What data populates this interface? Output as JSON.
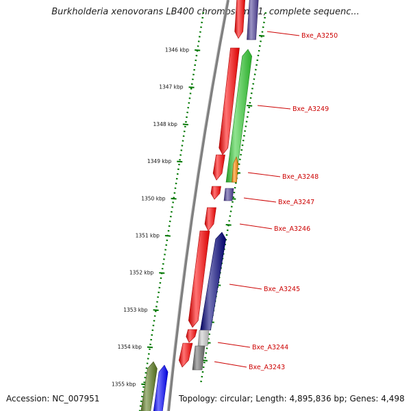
{
  "title": "Burkholderia xenovorans LB400 chromosome 1, complete sequenc...",
  "footer": {
    "accession": "Accession: NC_007951",
    "summary": "Topology: circular; Length: 4,895,836 bp; Genes: 4,498"
  },
  "ruler": {
    "unit": "kbp",
    "ticks": [
      "1346 kbp",
      "1347 kbp",
      "1348 kbp",
      "1349 kbp",
      "1350 kbp",
      "1351 kbp",
      "1352 kbp",
      "1353 kbp",
      "1354 kbp",
      "1355 kbp"
    ]
  },
  "gene_labels": [
    "Bxe_A3250",
    "Bxe_A3249",
    "Bxe_A3248",
    "Bxe_A3247",
    "Bxe_A3246",
    "Bxe_A3245",
    "Bxe_A3244",
    "Bxe_A3243"
  ],
  "colors": {
    "forward_strand": "#ff0000",
    "gene_green": "#33cc33",
    "gene_navy": "#00007a",
    "gene_purple": "#4b3c96",
    "gene_orange": "#ff8800",
    "gene_gray_light": "#c8c8c8",
    "gene_gray_dark": "#6e6e6e",
    "gene_olive": "#5a7a1e",
    "gene_blue": "#0000ff",
    "ruler": "#007700",
    "backbone": "#808080",
    "label": "#cc0000"
  }
}
